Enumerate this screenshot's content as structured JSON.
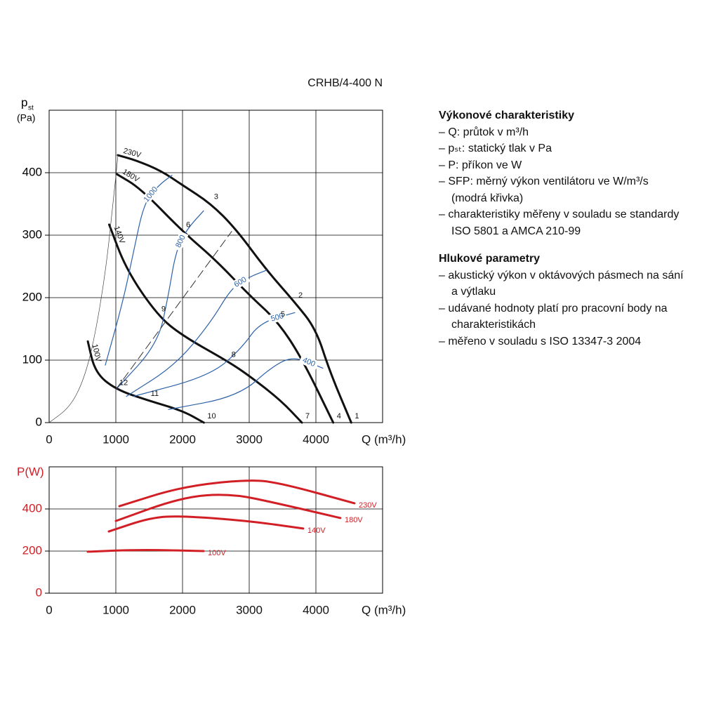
{
  "chart_data": [
    {
      "type": "line",
      "title": "CRHB/4-400 N",
      "y_label": "p",
      "y_label_sub": "st",
      "y_unit": "(Pa)",
      "x_label": "Q (m³/h)",
      "xlim": [
        0,
        5000
      ],
      "ylim": [
        0,
        500
      ],
      "xticks": [
        0,
        1000,
        2000,
        3000,
        4000
      ],
      "yticks": [
        0,
        100,
        200,
        300,
        400
      ],
      "grid": true,
      "axis_color": "#000000",
      "series": [
        {
          "name": "230V",
          "color": "#111111",
          "line_width": 3,
          "x": [
            1030,
            1300,
            1680,
            2000,
            2420,
            2800,
            3260,
            3680,
            4000,
            4210,
            4530
          ],
          "values": [
            428,
            420,
            403,
            380,
            351,
            310,
            244,
            193,
            150,
            81,
            0
          ]
        },
        {
          "name": "180V",
          "color": "#111111",
          "line_width": 3,
          "x": [
            1010,
            1370,
            2000,
            2500,
            3000,
            3420,
            3790,
            4260
          ],
          "values": [
            398,
            375,
            306,
            260,
            204,
            163,
            103,
            0
          ]
        },
        {
          "name": "140V",
          "color": "#111111",
          "line_width": 3,
          "x": [
            900,
            1160,
            1630,
            2000,
            2680,
            3000,
            3470,
            3790
          ],
          "values": [
            317,
            244,
            171,
            139,
            98,
            75,
            36,
            0
          ]
        },
        {
          "name": "100V",
          "color": "#111111",
          "line_width": 3,
          "x": [
            580,
            690,
            1000,
            1470,
            2000,
            2320
          ],
          "values": [
            130,
            80,
            53,
            36,
            19,
            0
          ]
        },
        {
          "name": "1000",
          "color": "#2d62a8",
          "line_width": 1.2,
          "x": [
            842,
            1105,
            1263,
            1421,
            1632,
            1842
          ],
          "values": [
            92,
            193,
            272,
            351,
            379,
            396
          ]
        },
        {
          "name": "800",
          "color": "#2d62a8",
          "line_width": 1.2,
          "x": [
            1000,
            1632,
            1789,
            1895,
            2053,
            2316
          ],
          "values": [
            53,
            126,
            204,
            272,
            308,
            339
          ]
        },
        {
          "name": "600",
          "color": "#2d62a8",
          "line_width": 1.2,
          "x": [
            1158,
            1895,
            2421,
            2737,
            3000,
            3263
          ],
          "values": [
            42,
            92,
            160,
            216,
            233,
            244
          ]
        },
        {
          "name": "500",
          "color": "#2d62a8",
          "line_width": 1.2,
          "x": [
            1263,
            2421,
            2895,
            3158,
            3684
          ],
          "values": [
            42,
            75,
            120,
            160,
            176
          ]
        },
        {
          "name": "400",
          "color": "#2d62a8",
          "line_width": 1.2,
          "x": [
            1789,
            2842,
            3368,
            3684,
            4105
          ],
          "values": [
            21,
            42,
            92,
            106,
            87
          ]
        },
        {
          "color": "#333333",
          "line_width": 1,
          "dash": true,
          "x": [
            1000,
            2737
          ],
          "values": [
            53,
            306
          ]
        },
        {
          "color": "#444444",
          "line_width": 0.7,
          "x": [
            0,
            316,
            526,
            684,
            842,
            947,
            1032
          ],
          "values": [
            0,
            25,
            70,
            137,
            238,
            339,
            428
          ]
        }
      ],
      "points": [
        {
          "label": "1",
          "x": 4530,
          "y": 0
        },
        {
          "label": "2",
          "x": 3684,
          "y": 193
        },
        {
          "label": "3",
          "x": 2420,
          "y": 351
        },
        {
          "label": "4",
          "x": 4260,
          "y": 0
        },
        {
          "label": "5",
          "x": 3420,
          "y": 163
        },
        {
          "label": "6",
          "x": 2000,
          "y": 306
        },
        {
          "label": "7",
          "x": 3790,
          "y": 0
        },
        {
          "label": "8",
          "x": 2680,
          "y": 98
        },
        {
          "label": "9",
          "x": 1630,
          "y": 171
        },
        {
          "label": "10",
          "x": 2320,
          "y": 0
        },
        {
          "label": "11",
          "x": 1470,
          "y": 36
        },
        {
          "label": "12",
          "x": 1000,
          "y": 53
        }
      ]
    },
    {
      "type": "line",
      "y_label": "P(W)",
      "x_label": "Q (m³/h)",
      "xlim": [
        0,
        5000
      ],
      "ylim": [
        0,
        600
      ],
      "xticks": [
        0,
        1000,
        2000,
        3000,
        4000
      ],
      "yticks": [
        0,
        200,
        400
      ],
      "grid": true,
      "axis_color": "#d21f26",
      "series": [
        {
          "name": "230V",
          "color": "#d21f26",
          "line_width": 3,
          "x": [
            1053,
            2000,
            3000,
            3474,
            4579
          ],
          "values": [
            413,
            507,
            540,
            523,
            427
          ]
        },
        {
          "name": "180V",
          "color": "#d21f26",
          "line_width": 3,
          "x": [
            1000,
            2000,
            2737,
            3474,
            4368
          ],
          "values": [
            343,
            457,
            473,
            423,
            357
          ]
        },
        {
          "name": "140V",
          "color": "#d21f26",
          "line_width": 3,
          "x": [
            895,
            1526,
            2000,
            3000,
            3810
          ],
          "values": [
            293,
            360,
            367,
            343,
            307
          ]
        },
        {
          "name": "100V",
          "color": "#d21f26",
          "line_width": 3,
          "x": [
            579,
            1368,
            2316
          ],
          "values": [
            197,
            207,
            200
          ]
        }
      ]
    }
  ],
  "notes": {
    "perf_title": "Výkonové charakteristiky",
    "perf_items": [
      "Q: průtok v m³/h",
      "pₛₜ: statický tlak v Pa",
      "P: příkon ve W",
      "SFP: měrný výkon ventilátoru ve W/m³/s (modrá křivka)",
      "charakteristiky měřeny v souladu se standardy ISO 5801 a AMCA 210-99"
    ],
    "noise_title": "Hlukové parametry",
    "noise_items": [
      "akustický výkon v oktávových pásmech na sání a výtlaku",
      "udávané hodnoty platí pro pracovní body na charakteristikách",
      "měřeno v souladu s ISO 13347-3 2004"
    ]
  }
}
